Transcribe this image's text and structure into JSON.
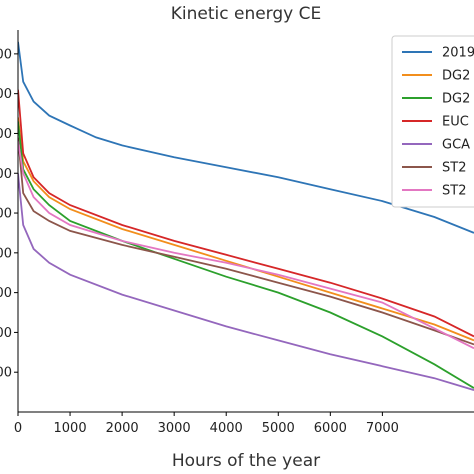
{
  "chart_data": {
    "type": "line",
    "title": "Kinetic energy CE",
    "xlabel": "Hours of the year",
    "ylabel": "",
    "xlim": [
      0,
      8760
    ],
    "ylim": [
      0,
      9.6
    ],
    "x_ticks": [
      0,
      1000,
      2000,
      3000,
      4000,
      5000,
      6000,
      7000
    ],
    "x_tick_labels": [
      "0",
      "1000",
      "2000",
      "3000",
      "4000",
      "5000",
      "6000",
      "7000"
    ],
    "y_ticks": [
      1,
      2,
      3,
      4,
      5,
      6,
      7,
      8,
      9
    ],
    "y_tick_labels": [
      "00",
      "00",
      "00",
      "00",
      "00",
      "00",
      "00",
      "00",
      "00"
    ],
    "grid": false,
    "legend_position": "top-right",
    "series": [
      {
        "name": "2019",
        "color": "#2e75b6",
        "points": [
          [
            0,
            9.3
          ],
          [
            100,
            8.3
          ],
          [
            300,
            7.8
          ],
          [
            600,
            7.45
          ],
          [
            1000,
            7.2
          ],
          [
            1500,
            6.9
          ],
          [
            2000,
            6.7
          ],
          [
            3000,
            6.4
          ],
          [
            4000,
            6.15
          ],
          [
            5000,
            5.9
          ],
          [
            6000,
            5.6
          ],
          [
            7000,
            5.3
          ],
          [
            8000,
            4.9
          ],
          [
            8760,
            4.5
          ]
        ]
      },
      {
        "name": "DG2",
        "color": "#f28e1c",
        "points": [
          [
            0,
            7.4
          ],
          [
            100,
            6.3
          ],
          [
            300,
            5.8
          ],
          [
            600,
            5.4
          ],
          [
            1000,
            5.1
          ],
          [
            2000,
            4.6
          ],
          [
            3000,
            4.2
          ],
          [
            4000,
            3.8
          ],
          [
            5000,
            3.4
          ],
          [
            6000,
            3.0
          ],
          [
            7000,
            2.6
          ],
          [
            8000,
            2.2
          ],
          [
            8760,
            1.8
          ]
        ]
      },
      {
        "name": "DG2",
        "color": "#2ca02c",
        "points": [
          [
            0,
            7.3
          ],
          [
            100,
            6.1
          ],
          [
            300,
            5.6
          ],
          [
            600,
            5.2
          ],
          [
            1000,
            4.8
          ],
          [
            2000,
            4.3
          ],
          [
            3000,
            3.85
          ],
          [
            4000,
            3.4
          ],
          [
            5000,
            3.0
          ],
          [
            6000,
            2.5
          ],
          [
            7000,
            1.9
          ],
          [
            8000,
            1.2
          ],
          [
            8760,
            0.6
          ]
        ]
      },
      {
        "name": "EUC",
        "color": "#d62728",
        "points": [
          [
            0,
            8.1
          ],
          [
            100,
            6.5
          ],
          [
            300,
            5.9
          ],
          [
            600,
            5.5
          ],
          [
            1000,
            5.2
          ],
          [
            2000,
            4.7
          ],
          [
            3000,
            4.3
          ],
          [
            4000,
            3.95
          ],
          [
            5000,
            3.6
          ],
          [
            6000,
            3.25
          ],
          [
            7000,
            2.85
          ],
          [
            8000,
            2.4
          ],
          [
            8760,
            1.9
          ]
        ]
      },
      {
        "name": "GCA",
        "color": "#9467bd",
        "points": [
          [
            0,
            6.0
          ],
          [
            100,
            4.7
          ],
          [
            300,
            4.1
          ],
          [
            600,
            3.75
          ],
          [
            1000,
            3.45
          ],
          [
            2000,
            2.95
          ],
          [
            3000,
            2.55
          ],
          [
            4000,
            2.15
          ],
          [
            5000,
            1.8
          ],
          [
            6000,
            1.45
          ],
          [
            7000,
            1.15
          ],
          [
            8000,
            0.85
          ],
          [
            8760,
            0.55
          ]
        ]
      },
      {
        "name": "ST2",
        "color": "#8c564b",
        "points": [
          [
            0,
            6.9
          ],
          [
            100,
            5.5
          ],
          [
            300,
            5.05
          ],
          [
            600,
            4.8
          ],
          [
            1000,
            4.55
          ],
          [
            2000,
            4.2
          ],
          [
            3000,
            3.9
          ],
          [
            4000,
            3.6
          ],
          [
            5000,
            3.25
          ],
          [
            6000,
            2.9
          ],
          [
            7000,
            2.5
          ],
          [
            8000,
            2.05
          ],
          [
            8760,
            1.7
          ]
        ]
      },
      {
        "name": "ST2",
        "color": "#e377c2",
        "points": [
          [
            0,
            6.8
          ],
          [
            100,
            6.0
          ],
          [
            300,
            5.4
          ],
          [
            600,
            5.0
          ],
          [
            1000,
            4.7
          ],
          [
            2000,
            4.3
          ],
          [
            3000,
            4.0
          ],
          [
            4000,
            3.75
          ],
          [
            5000,
            3.45
          ],
          [
            6000,
            3.1
          ],
          [
            7000,
            2.75
          ],
          [
            8000,
            2.1
          ],
          [
            8760,
            1.6
          ]
        ]
      }
    ]
  }
}
